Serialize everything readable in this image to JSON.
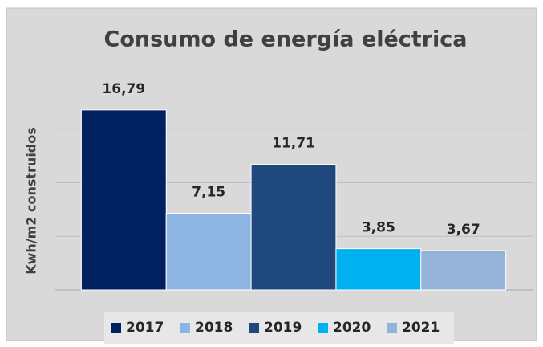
{
  "chart_data": {
    "type": "bar",
    "title": "Consumo de energía eléctrica",
    "y_label": "Kwh/m2 construidos",
    "categories": [
      null
    ],
    "series": [
      {
        "name": "2017",
        "color": "#002060",
        "values": [
          16.79
        ],
        "value_labels": [
          "16,79"
        ]
      },
      {
        "name": "2018",
        "color": "#8eb4e3",
        "values": [
          7.15
        ],
        "value_labels": [
          "7,15"
        ]
      },
      {
        "name": "2019",
        "color": "#1f497d",
        "values": [
          11.71
        ],
        "value_labels": [
          "11,71"
        ]
      },
      {
        "name": "2020",
        "color": "#00b0f0",
        "values": [
          3.85
        ],
        "value_labels": [
          "3,85"
        ]
      },
      {
        "name": "2021",
        "color": "#95b3d7",
        "values": [
          3.67
        ],
        "value_labels": [
          "3,67"
        ]
      }
    ],
    "ylim": [
      0,
      20
    ],
    "yticks": [
      0,
      5,
      10,
      15
    ],
    "grid": true,
    "legend": "bottom"
  }
}
